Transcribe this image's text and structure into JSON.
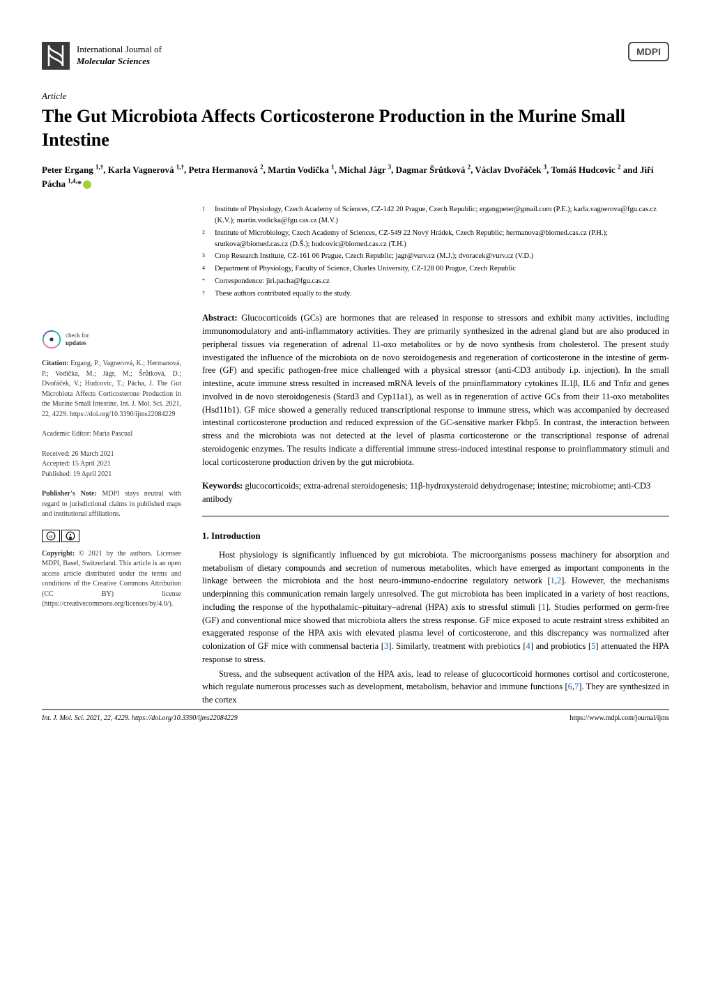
{
  "journal": {
    "top_line": "International Journal of",
    "bottom_line": "Molecular Sciences",
    "publisher_logo": "MDPI"
  },
  "article": {
    "type": "Article",
    "title": "The Gut Microbiota Affects Corticosterone Production in the Murine Small Intestine",
    "authors_html": "Peter Ergang <span class='sup'>1,†</span>, Karla Vagnerová <span class='sup'>1,†</span>, Petra Hermanová <span class='sup'>2</span>, Martin Vodička <span class='sup'>1</span>, Michal Jágr <span class='sup'>3</span>, Dagmar Šrůtková <span class='sup'>2</span>, Václav Dvořáček <span class='sup'>3</span>, Tomáš Hudcovic <span class='sup'>2</span> and Jiří Pácha <span class='sup'>1,4,</span>*"
  },
  "affiliations": [
    {
      "num": "1",
      "text": "Institute of Physiology, Czech Academy of Sciences, CZ-142 20 Prague, Czech Republic; ergangpeter@gmail.com (P.E.); karla.vagnerova@fgu.cas.cz (K.V.); martin.vodicka@fgu.cas.cz (M.V.)"
    },
    {
      "num": "2",
      "text": "Institute of Microbiology, Czech Academy of Sciences, CZ-549 22 Nový Hrádek, Czech Republic; hermanova@biomed.cas.cz (P.H.); srutkova@biomed.cas.cz (D.Š.); hudcovic@biomed.cas.cz (T.H.)"
    },
    {
      "num": "3",
      "text": "Crop Research Institute, CZ-161 06 Prague, Czech Republic; jagr@vurv.cz (M.J.); dvoracek@vurv.cz (V.D.)"
    },
    {
      "num": "4",
      "text": "Department of Physiology, Faculty of Science, Charles University, CZ-128 00 Prague, Czech Republic"
    },
    {
      "num": "*",
      "text": "Correspondence: jiri.pacha@fgu.cas.cz"
    },
    {
      "num": "†",
      "text": "These authors contributed equally to the study."
    }
  ],
  "abstract": {
    "label": "Abstract:",
    "text": " Glucocorticoids (GCs) are hormones that are released in response to stressors and exhibit many activities, including immunomodulatory and anti-inflammatory activities. They are primarily synthesized in the adrenal gland but are also produced in peripheral tissues via regeneration of adrenal 11-oxo metabolites or by de novo synthesis from cholesterol. The present study investigated the influence of the microbiota on de novo steroidogenesis and regeneration of corticosterone in the intestine of germ-free (GF) and specific pathogen-free mice challenged with a physical stressor (anti-CD3 antibody i.p. injection). In the small intestine, acute immune stress resulted in increased mRNA levels of the proinflammatory cytokines IL1β, IL6 and Tnfα and genes involved in de novo steroidogenesis (Stard3 and Cyp11a1), as well as in regeneration of active GCs from their 11-oxo metabolites (Hsd11b1). GF mice showed a generally reduced transcriptional response to immune stress, which was accompanied by decreased intestinal corticosterone production and reduced expression of the GC-sensitive marker Fkbp5. In contrast, the interaction between stress and the microbiota was not detected at the level of plasma corticosterone or the transcriptional response of adrenal steroidogenic enzymes. The results indicate a differential immune stress-induced intestinal response to proinflammatory stimuli and local corticosterone production driven by the gut microbiota."
  },
  "keywords": {
    "label": "Keywords:",
    "text": " glucocorticoids; extra-adrenal steroidogenesis; 11β-hydroxysteroid dehydrogenase; intestine; microbiome; anti-CD3 antibody"
  },
  "section1": {
    "title": "1. Introduction",
    "p1": "Host physiology is significantly influenced by gut microbiota. The microorganisms possess machinery for absorption and metabolism of dietary compounds and secretion of numerous metabolites, which have emerged as important components in the linkage between the microbiota and the host neuro-immuno-endocrine regulatory network [1,2]. However, the mechanisms underpinning this communication remain largely unresolved. The gut microbiota has been implicated in a variety of host reactions, including the response of the hypothalamic–pituitary–adrenal (HPA) axis to stressful stimuli [1]. Studies performed on germ-free (GF) and conventional mice showed that microbiota alters the stress response. GF mice exposed to acute restraint stress exhibited an exaggerated response of the HPA axis with elevated plasma level of corticosterone, and this discrepancy was normalized after colonization of GF mice with commensal bacteria [3]. Similarly, treatment with prebiotics [4] and probiotics [5] attenuated the HPA response to stress.",
    "p2": "Stress, and the subsequent activation of the HPA axis, lead to release of glucocorticoid hormones cortisol and corticosterone, which regulate numerous processes such as development, metabolism, behavior and immune functions [6,7]. They are synthesized in the cortex"
  },
  "sidebar": {
    "check_updates": {
      "line1": "check for",
      "line2": "updates"
    },
    "citation_label": "Citation:",
    "citation_text": " Ergang, P.; Vagnerová, K.; Hermanová, P.; Vodička, M.; Jágr, M.; Šrůtková, D.; Dvořáček, V.; Hudcovic, T.; Pácha, J. The Gut Microbiota Affects Corticosterone Production in the Murine Small Intestine. Int. J. Mol. Sci. 2021, 22, 4229. https://doi.org/10.3390/ijms22084229",
    "editor_label": "Academic Editor:",
    "editor_text": " Maria Pascual",
    "received": "Received: 26 March 2021",
    "accepted": "Accepted: 15 April 2021",
    "published": "Published: 19 April 2021",
    "note_label": "Publisher's Note:",
    "note_text": " MDPI stays neutral with regard to jurisdictional claims in published maps and institutional affiliations.",
    "copyright_label": "Copyright:",
    "copyright_text": " © 2021 by the authors. Licensee MDPI, Basel, Switzerland. This article is an open access article distributed under the terms and conditions of the Creative Commons Attribution (CC BY) license (https://creativecommons.org/licenses/by/4.0/)."
  },
  "footer": {
    "left": "Int. J. Mol. Sci. 2021, 22, 4229. https://doi.org/10.3390/ijms22084229",
    "right": "https://www.mdpi.com/journal/ijms"
  },
  "colors": {
    "text": "#000000",
    "background": "#ffffff",
    "link": "#0066cc",
    "orcid": "#a6ce39",
    "logo_dark": "#3a3a3a"
  },
  "typography": {
    "title_fontsize": 26,
    "body_fontsize": 12.5,
    "sidebar_fontsize": 10,
    "affil_fontsize": 10.5
  }
}
